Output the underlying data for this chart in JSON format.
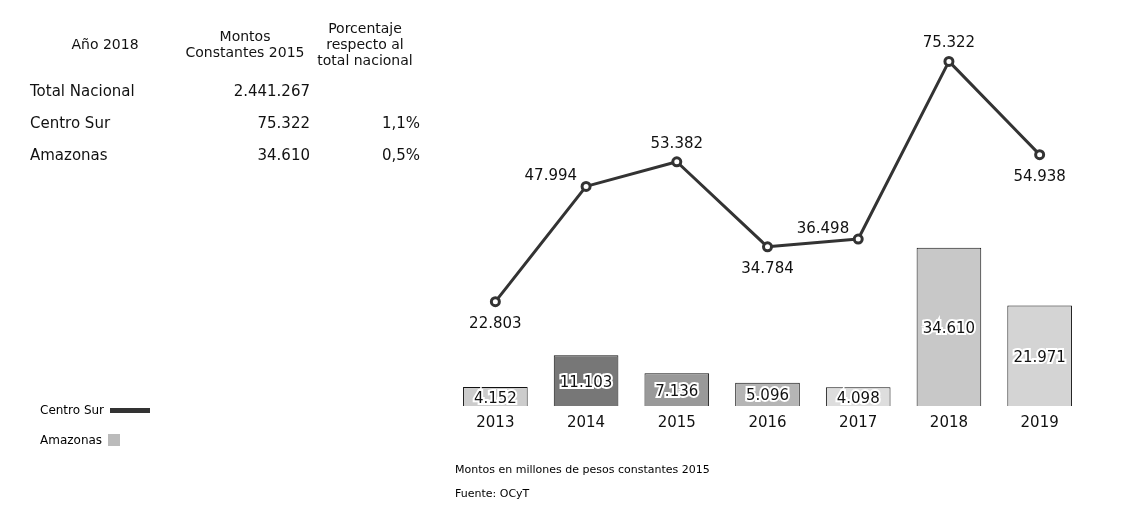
{
  "chart_data": [
    {
      "type": "other",
      "annotations": [
        "Año 2018",
        "Montos Constantes 2015",
        "Porcentaje respecto al total nacional",
        "Total Nacional",
        "2.441.267",
        "Centro Sur",
        "75.322",
        "1,1%",
        "Amazonas",
        "34.610",
        "0,5%"
      ]
    },
    {
      "type": "bar",
      "categories": [
        "2013",
        "2014",
        "2015",
        "2016",
        "2017",
        "2018",
        "2019"
      ],
      "series": [
        {
          "name": "Centro Sur",
          "type": "line",
          "color": "#333333",
          "values": [
            22803,
            47994,
            53382,
            34784,
            36498,
            75322,
            54938
          ],
          "value_labels": [
            "22.803",
            "47.994",
            "53.382",
            "34.784",
            "36.498",
            "75.322",
            "54.938"
          ]
        },
        {
          "name": "Amazonas",
          "type": "bar",
          "color": "#bbbbbb",
          "colors": [
            "#cccccc",
            "#777777",
            "#999999",
            "#b5b5b5",
            "#dddddd",
            "#c8c8c8",
            "#d4d4d4"
          ],
          "values": [
            4152,
            11103,
            7136,
            5096,
            4098,
            34610,
            21971
          ],
          "value_labels": [
            "4.152",
            "11.103",
            "7.136",
            "5.096",
            "4.098",
            "34.610",
            "21.971"
          ]
        }
      ],
      "tick_labels": "x",
      "grid": false,
      "legend": "left",
      "marker": "circle",
      "annotations": [
        "Montos en millones de pesos constantes 2015",
        "Fuente: OCyT"
      ]
    }
  ]
}
